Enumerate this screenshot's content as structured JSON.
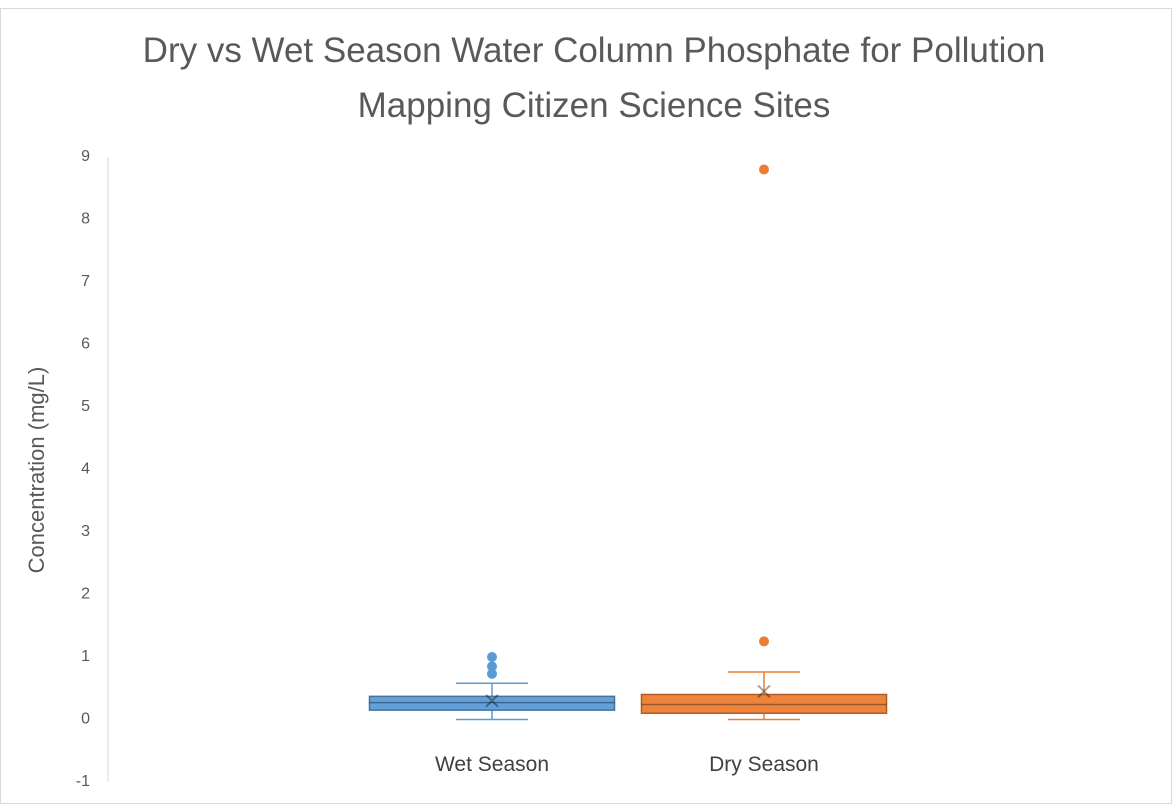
{
  "chart_data": {
    "type": "box",
    "title": "Dry vs Wet Season Water Column Phosphate for Pollution Mapping Citizen Science Sites",
    "y_label": "Concentration (mg/L)",
    "categories": [
      "Wet Season",
      "Dry Season"
    ],
    "boxes": [
      {
        "color": "#5b9bd5",
        "min": 0,
        "q1": 0.15,
        "median": 0.27,
        "q3": 0.37,
        "max": 0.58,
        "mean": 0.3,
        "outliers": [
          0.73,
          0.85,
          1.0
        ]
      },
      {
        "color": "#ed7d31",
        "min": 0,
        "q1": 0.1,
        "median": 0.24,
        "q3": 0.4,
        "max": 0.76,
        "mean": 0.45,
        "outliers": [
          1.25,
          8.8
        ]
      }
    ],
    "ylim": [
      -1,
      9
    ],
    "yticks": [
      -1,
      0,
      1,
      2,
      3,
      4,
      5,
      6,
      7,
      8,
      9
    ]
  }
}
